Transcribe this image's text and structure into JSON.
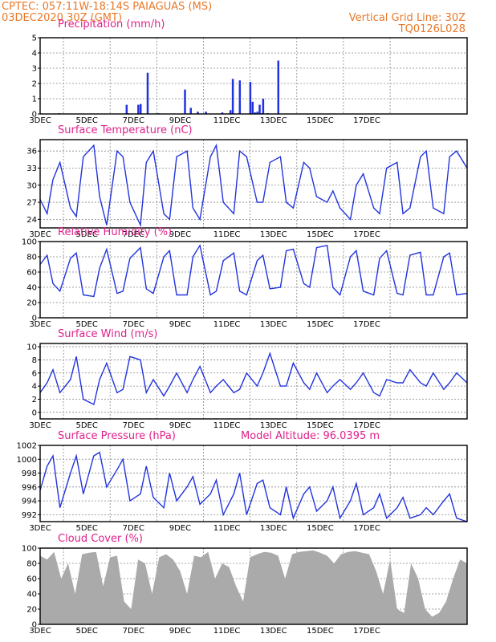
{
  "header": {
    "line1": "CPTEC:   057:11W-18:14S  PAIAGUAS (MS)",
    "line2": "03DEC2020 30Z (GMT)",
    "grid_line": "Vertical Grid Line: 30Z",
    "code": "TQ0126L028"
  },
  "chart_data": [
    {
      "type": "bar",
      "title": "Precipitation (mm/h)",
      "xlabel": "",
      "ylabel": "",
      "x_ticks": [
        "3DEC",
        "5DEC",
        "7DEC",
        "9DEC",
        "11DEC",
        "13DEC",
        "15DEC",
        "17DEC"
      ],
      "ylim": [
        0,
        5
      ],
      "y_ticks": [
        0,
        1,
        2,
        3,
        4,
        5
      ],
      "grid": true,
      "color": "#2233dd",
      "x": [
        0.8,
        3.7,
        3.75,
        4.2,
        4.3,
        4.6,
        5.05,
        5.1,
        6.2,
        6.45,
        6.75,
        7.1,
        7.8,
        8.15,
        8.25,
        8.55,
        9.0,
        9.1,
        9.2,
        9.3,
        9.4,
        9.5,
        9.55,
        9.75,
        10.2
      ],
      "values": [
        0.05,
        0.6,
        0.05,
        0.6,
        0.65,
        2.7,
        0.05,
        0.02,
        1.6,
        0.4,
        0.15,
        0.15,
        0.1,
        0.25,
        2.3,
        2.2,
        2.1,
        0.8,
        0.1,
        0.15,
        0.6,
        0.05,
        1.0,
        0.05,
        3.5
      ]
    },
    {
      "type": "line",
      "title": "Surface Temperature (nC)",
      "x_ticks": [
        "3DEC",
        "5DEC",
        "7DEC",
        "9DEC",
        "11DEC",
        "13DEC",
        "15DEC",
        "17DEC"
      ],
      "ylim": [
        22.5,
        38
      ],
      "y_ticks": [
        24,
        27,
        30,
        33,
        36
      ],
      "grid": true,
      "color": "#2233dd",
      "x": [
        0,
        0.3,
        0.55,
        0.85,
        1.3,
        1.55,
        1.85,
        2.3,
        2.55,
        2.85,
        3.3,
        3.55,
        3.85,
        4.3,
        4.55,
        4.85,
        5.3,
        5.55,
        5.85,
        6.3,
        6.55,
        6.85,
        7.3,
        7.55,
        7.85,
        8.3,
        8.55,
        8.85,
        9.3,
        9.55,
        9.85,
        10.3,
        10.55,
        10.85,
        11.3,
        11.55,
        11.85,
        12.3,
        12.55,
        12.85,
        13.3,
        13.55,
        13.85,
        14.3,
        14.55,
        14.85,
        15.3,
        15.55,
        15.85,
        16.3,
        16.55,
        16.85,
        17.3,
        17.55,
        17.85,
        18.3
      ],
      "values": [
        27.5,
        25,
        31,
        34,
        26,
        24.5,
        35,
        37,
        28,
        23,
        36,
        35,
        27,
        23,
        34,
        36,
        25,
        24,
        35,
        36,
        26,
        24,
        35,
        37,
        27,
        25,
        36,
        35,
        27,
        27,
        34,
        35,
        27,
        26,
        34,
        33,
        28,
        27,
        29,
        26,
        24,
        30,
        32,
        26,
        25,
        33,
        34,
        25,
        26,
        35,
        36,
        26,
        25,
        35,
        36,
        33
      ]
    },
    {
      "type": "line",
      "title": "Relative Humidity (%)",
      "x_ticks": [
        "3DEC",
        "5DEC",
        "7DEC",
        "9DEC",
        "11DEC",
        "13DEC",
        "15DEC",
        "17DEC"
      ],
      "ylim": [
        0,
        100
      ],
      "y_ticks": [
        0,
        20,
        40,
        60,
        80,
        100
      ],
      "grid": true,
      "color": "#2233dd",
      "x": [
        0,
        0.3,
        0.55,
        0.85,
        1.3,
        1.55,
        1.85,
        2.3,
        2.55,
        2.85,
        3.3,
        3.55,
        3.85,
        4.3,
        4.55,
        4.85,
        5.3,
        5.55,
        5.85,
        6.3,
        6.55,
        6.85,
        7.3,
        7.55,
        7.85,
        8.3,
        8.55,
        8.85,
        9.3,
        9.55,
        9.85,
        10.3,
        10.55,
        10.85,
        11.3,
        11.55,
        11.85,
        12.3,
        12.55,
        12.85,
        13.3,
        13.55,
        13.85,
        14.3,
        14.55,
        14.85,
        15.3,
        15.55,
        15.85,
        16.3,
        16.55,
        16.85,
        17.3,
        17.55,
        17.85,
        18.3
      ],
      "values": [
        70,
        82,
        45,
        35,
        78,
        85,
        30,
        28,
        65,
        90,
        32,
        35,
        78,
        92,
        38,
        32,
        80,
        88,
        30,
        30,
        80,
        95,
        30,
        35,
        75,
        85,
        35,
        30,
        75,
        82,
        38,
        40,
        88,
        90,
        45,
        40,
        92,
        95,
        40,
        30,
        80,
        88,
        35,
        30,
        78,
        88,
        32,
        30,
        82,
        86,
        30,
        30,
        80,
        85,
        30,
        32
      ]
    },
    {
      "type": "line",
      "title": "Surface Wind (m/s)",
      "x_ticks": [
        "3DEC",
        "5DEC",
        "7DEC",
        "9DEC",
        "11DEC",
        "13DEC",
        "15DEC",
        "17DEC"
      ],
      "ylim": [
        -1,
        10.5
      ],
      "y_ticks": [
        0,
        2,
        4,
        6,
        8,
        10
      ],
      "grid": true,
      "color": "#2233dd",
      "x": [
        0,
        0.3,
        0.55,
        0.85,
        1.3,
        1.55,
        1.85,
        2.3,
        2.55,
        2.85,
        3.3,
        3.55,
        3.85,
        4.3,
        4.55,
        4.85,
        5.3,
        5.55,
        5.85,
        6.3,
        6.55,
        6.85,
        7.3,
        7.55,
        7.85,
        8.3,
        8.55,
        8.85,
        9.3,
        9.55,
        9.85,
        10.3,
        10.55,
        10.85,
        11.3,
        11.55,
        11.85,
        12.3,
        12.55,
        12.85,
        13.3,
        13.55,
        13.85,
        14.3,
        14.55,
        14.85,
        15.3,
        15.55,
        15.85,
        16.3,
        16.55,
        16.85,
        17.3,
        17.55,
        17.85,
        18.3
      ],
      "values": [
        3,
        4.5,
        6.5,
        3,
        5,
        8.5,
        2,
        1.2,
        5,
        7.5,
        3,
        3.5,
        8.5,
        8,
        3,
        5,
        2.5,
        4,
        6,
        3,
        5,
        7,
        3,
        4,
        5,
        3,
        3.5,
        6,
        4,
        6,
        9,
        4,
        4,
        7.5,
        4.5,
        3.5,
        6,
        3,
        4,
        5,
        3.5,
        4.5,
        6,
        3,
        2.5,
        5,
        4.5,
        4.5,
        6.5,
        4.5,
        4,
        6,
        3.5,
        4.5,
        6,
        4.5
      ]
    },
    {
      "type": "line",
      "title": "Surface Pressure (hPa)",
      "annotation": "Model Altitude: 96.0395 m",
      "x_ticks": [
        "3DEC",
        "5DEC",
        "7DEC",
        "9DEC",
        "11DEC",
        "13DEC",
        "15DEC",
        "17DEC"
      ],
      "ylim": [
        991,
        1002
      ],
      "y_ticks": [
        992,
        994,
        996,
        998,
        1000,
        1002
      ],
      "grid": true,
      "color": "#2233dd",
      "x": [
        0,
        0.3,
        0.55,
        0.85,
        1.3,
        1.55,
        1.85,
        2.3,
        2.55,
        2.85,
        3.3,
        3.55,
        3.85,
        4.3,
        4.55,
        4.85,
        5.3,
        5.55,
        5.85,
        6.3,
        6.55,
        6.85,
        7.3,
        7.55,
        7.85,
        8.3,
        8.55,
        8.85,
        9.3,
        9.55,
        9.85,
        10.3,
        10.55,
        10.85,
        11.3,
        11.55,
        11.85,
        12.3,
        12.55,
        12.85,
        13.3,
        13.55,
        13.85,
        14.3,
        14.55,
        14.85,
        15.3,
        15.55,
        15.85,
        16.3,
        16.55,
        16.85,
        17.3,
        17.55,
        17.85,
        18.3
      ],
      "values": [
        995.5,
        999,
        1000.5,
        993,
        998,
        1000.5,
        995,
        1000.5,
        1001,
        996,
        998.5,
        1000,
        994,
        995,
        999,
        994.5,
        993,
        998,
        994,
        996,
        997.5,
        993.5,
        995,
        997,
        992,
        995,
        998,
        992,
        996.5,
        997,
        993,
        992,
        996,
        991.5,
        995,
        996,
        992.5,
        994,
        996,
        991.5,
        994,
        996.5,
        992,
        993,
        995,
        991.5,
        993,
        994.5,
        991.5,
        992,
        993,
        992,
        994,
        995,
        991.5,
        991
      ]
    },
    {
      "type": "area",
      "title": "Cloud Cover (%)",
      "x_ticks": [
        "3DEC",
        "5DEC",
        "7DEC",
        "9DEC",
        "11DEC",
        "13DEC",
        "15DEC",
        "17DEC"
      ],
      "ylim": [
        0,
        100
      ],
      "y_ticks": [
        0,
        20,
        40,
        60,
        80,
        100
      ],
      "grid": true,
      "color": "#aaaaaa",
      "x": [
        0,
        0.3,
        0.6,
        0.9,
        1.2,
        1.5,
        1.8,
        2.1,
        2.4,
        2.7,
        3.0,
        3.3,
        3.6,
        3.9,
        4.2,
        4.5,
        4.8,
        5.1,
        5.4,
        5.7,
        6.0,
        6.3,
        6.6,
        6.9,
        7.2,
        7.5,
        7.8,
        8.1,
        8.4,
        8.7,
        9.0,
        9.3,
        9.6,
        9.9,
        10.2,
        10.5,
        10.8,
        11.1,
        11.4,
        11.7,
        12.0,
        12.3,
        12.6,
        12.9,
        13.2,
        13.5,
        13.8,
        14.1,
        14.4,
        14.7,
        15.0,
        15.3,
        15.6,
        15.9,
        16.2,
        16.5,
        16.8,
        17.1,
        17.4,
        17.7,
        18.0,
        18.3
      ],
      "values": [
        90,
        85,
        95,
        60,
        80,
        40,
        92,
        94,
        95,
        50,
        88,
        90,
        30,
        20,
        85,
        80,
        40,
        88,
        92,
        85,
        70,
        40,
        90,
        88,
        95,
        60,
        80,
        75,
        50,
        30,
        88,
        92,
        95,
        94,
        90,
        60,
        92,
        95,
        96,
        97,
        94,
        90,
        80,
        92,
        95,
        96,
        94,
        92,
        70,
        40,
        85,
        20,
        15,
        80,
        60,
        20,
        10,
        15,
        30,
        60,
        85,
        80
      ]
    }
  ]
}
